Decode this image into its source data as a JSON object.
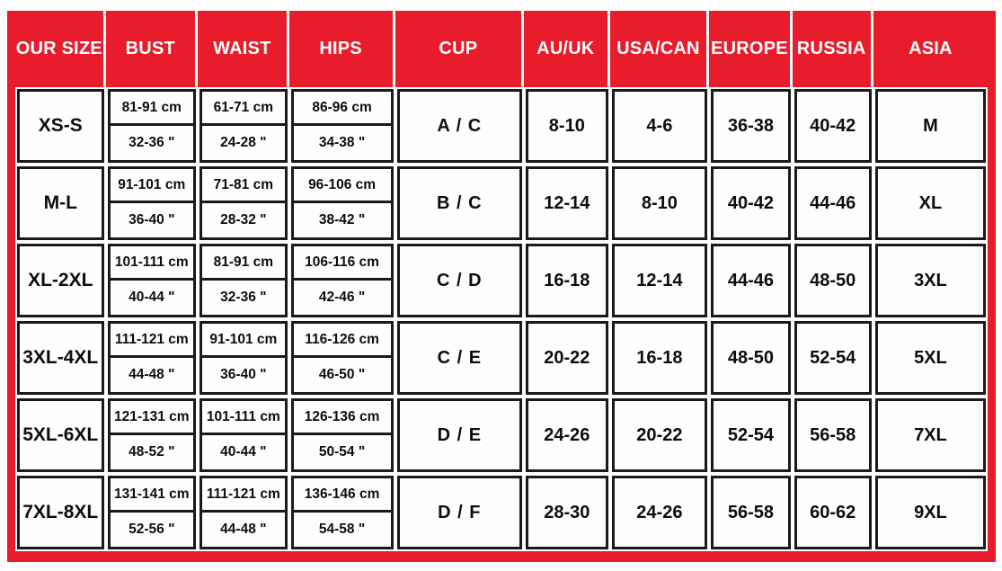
{
  "theme": {
    "header_bg": "#e91c2b",
    "header_text": "#ffffff",
    "cell_border": "#1a1a1a",
    "cell_bg": "#fefefe"
  },
  "chart_data": {
    "type": "table",
    "columns": [
      "OUR SIZE",
      "BUST",
      "WAIST",
      "HIPS",
      "CUP",
      "AU/UK",
      "USA/CAN",
      "EUROPE",
      "RUSSIA",
      "ASIA"
    ],
    "rows": [
      {
        "size": "XS-S",
        "bust_cm": "81-91 cm",
        "bust_in": "32-36 \"",
        "waist_cm": "61-71 cm",
        "waist_in": "24-28 \"",
        "hips_cm": "86-96 cm",
        "hips_in": "34-38 \"",
        "cup": "A / C",
        "au_uk": "8-10",
        "usa_can": "4-6",
        "europe": "36-38",
        "russia": "40-42",
        "asia": "M"
      },
      {
        "size": "M-L",
        "bust_cm": "91-101 cm",
        "bust_in": "36-40 \"",
        "waist_cm": "71-81 cm",
        "waist_in": "28-32 \"",
        "hips_cm": "96-106 cm",
        "hips_in": "38-42 \"",
        "cup": "B / C",
        "au_uk": "12-14",
        "usa_can": "8-10",
        "europe": "40-42",
        "russia": "44-46",
        "asia": "XL"
      },
      {
        "size": "XL-2XL",
        "bust_cm": "101-111 cm",
        "bust_in": "40-44 \"",
        "waist_cm": "81-91 cm",
        "waist_in": "32-36 \"",
        "hips_cm": "106-116 cm",
        "hips_in": "42-46 \"",
        "cup": "C / D",
        "au_uk": "16-18",
        "usa_can": "12-14",
        "europe": "44-46",
        "russia": "48-50",
        "asia": "3XL"
      },
      {
        "size": "3XL-4XL",
        "bust_cm": "111-121 cm",
        "bust_in": "44-48 \"",
        "waist_cm": "91-101 cm",
        "waist_in": "36-40 \"",
        "hips_cm": "116-126 cm",
        "hips_in": "46-50 \"",
        "cup": "C / E",
        "au_uk": "20-22",
        "usa_can": "16-18",
        "europe": "48-50",
        "russia": "52-54",
        "asia": "5XL"
      },
      {
        "size": "5XL-6XL",
        "bust_cm": "121-131 cm",
        "bust_in": "48-52 \"",
        "waist_cm": "101-111 cm",
        "waist_in": "40-44 \"",
        "hips_cm": "126-136 cm",
        "hips_in": "50-54 \"",
        "cup": "D / E",
        "au_uk": "24-26",
        "usa_can": "20-22",
        "europe": "52-54",
        "russia": "56-58",
        "asia": "7XL"
      },
      {
        "size": "7XL-8XL",
        "bust_cm": "131-141 cm",
        "bust_in": "52-56 \"",
        "waist_cm": "111-121 cm",
        "waist_in": "44-48 \"",
        "hips_cm": "136-146 cm",
        "hips_in": "54-58 \"",
        "cup": "D / F",
        "au_uk": "28-30",
        "usa_can": "24-26",
        "europe": "56-58",
        "russia": "60-62",
        "asia": "9XL"
      }
    ]
  }
}
